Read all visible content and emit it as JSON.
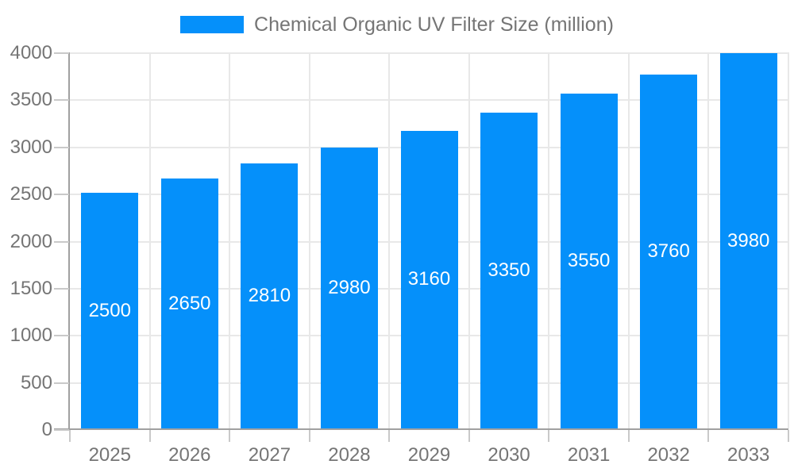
{
  "chart_data": {
    "type": "bar",
    "title": "",
    "legend": "Chemical Organic UV Filter Size (million)",
    "categories": [
      "2025",
      "2026",
      "2027",
      "2028",
      "2029",
      "2030",
      "2031",
      "2032",
      "2033"
    ],
    "values": [
      2500,
      2650,
      2810,
      2980,
      3160,
      3350,
      3550,
      3760,
      3980
    ],
    "xlabel": "",
    "ylabel": "",
    "ylim": [
      0,
      4000
    ],
    "ytick_interval": 500,
    "grid": true,
    "legend_position": "top-center",
    "colors": {
      "bar": "#0590FA",
      "value_label": "#ffffff",
      "axis_text": "#757575",
      "axis_line": "#a0a0a0",
      "gridline": "#e8e8e8",
      "tick": "#c9c9c9",
      "background": "#ffffff"
    }
  }
}
